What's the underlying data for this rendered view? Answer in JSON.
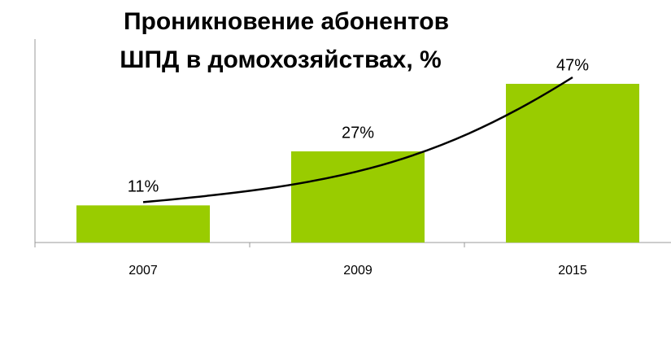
{
  "chart_data": {
    "type": "bar",
    "title": [
      "Проникновение абонентов",
      "ШПД в домохозяйствах, %"
    ],
    "categories": [
      "2007",
      "2009",
      "2015"
    ],
    "values": [
      11,
      27,
      47
    ],
    "value_labels": [
      "11%",
      "27%",
      "47%"
    ],
    "color": "#99cc00"
  }
}
